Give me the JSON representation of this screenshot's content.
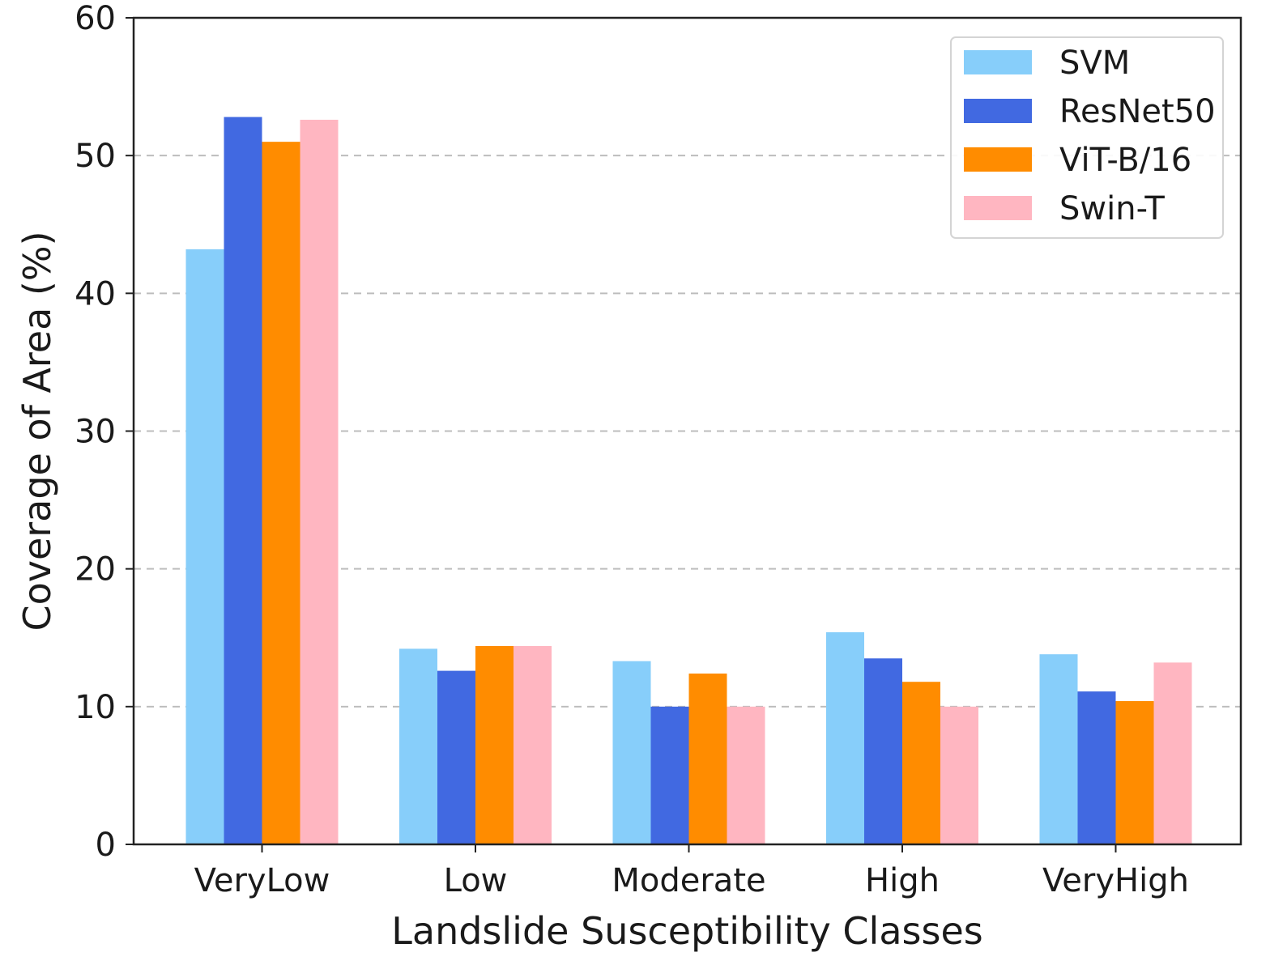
{
  "chart_data": {
    "type": "bar",
    "title": "",
    "xlabel": "Landslide Susceptibility Classes",
    "ylabel": "Coverage of Area (%)",
    "ylim": [
      0,
      60
    ],
    "yticks": [
      0,
      10,
      20,
      30,
      40,
      50,
      60
    ],
    "grid": "horizontal-dashed",
    "legend_position": "top-right",
    "categories": [
      "VeryLow",
      "Low",
      "Moderate",
      "High",
      "VeryHigh"
    ],
    "series": [
      {
        "name": "SVM",
        "color": "#87CEFA",
        "values": [
          43.2,
          14.2,
          13.3,
          15.4,
          13.8
        ]
      },
      {
        "name": "ResNet50",
        "color": "#4169E1",
        "values": [
          52.8,
          12.6,
          10.0,
          13.5,
          11.1
        ]
      },
      {
        "name": "ViT-B/16",
        "color": "#FF8C00",
        "values": [
          51.0,
          14.4,
          12.4,
          11.8,
          10.4
        ]
      },
      {
        "name": "Swin-T",
        "color": "#FFB6C1",
        "values": [
          52.6,
          14.4,
          10.0,
          10.0,
          13.2
        ]
      }
    ]
  }
}
